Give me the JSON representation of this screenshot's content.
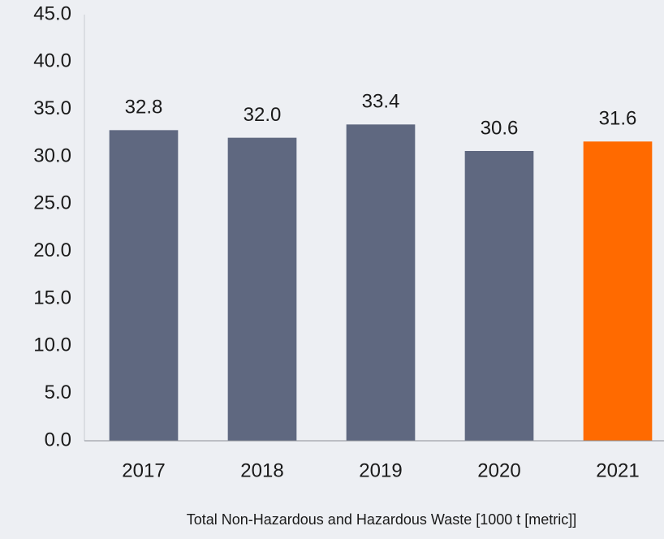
{
  "chart_data": {
    "type": "bar",
    "x_label": "Total Non-Hazardous and Hazardous Waste [1000 t [metric]]",
    "categories": [
      "2017",
      "2018",
      "2019",
      "2020",
      "2021"
    ],
    "values": [
      32.8,
      32,
      33.4,
      30.6,
      31.6
    ],
    "value_labels": [
      "32.8",
      "32.0",
      "33.4",
      "30.6",
      "31.6"
    ],
    "colors": [
      "#5f6880",
      "#5f6880",
      "#5f6880",
      "#5f6880",
      "#ff6a00"
    ],
    "ylim": [
      0,
      45
    ],
    "yticks": [
      {
        "value": 0,
        "label": "0.0"
      },
      {
        "value": 5,
        "label": "5.0"
      },
      {
        "value": 10,
        "label": "10.0"
      },
      {
        "value": 15,
        "label": "15.0"
      },
      {
        "value": 20,
        "label": "20.0"
      },
      {
        "value": 25,
        "label": "25.0"
      },
      {
        "value": 30,
        "label": "30.0"
      },
      {
        "value": 35,
        "label": "35.0"
      },
      {
        "value": 40,
        "label": "40.0"
      },
      {
        "value": 45,
        "label": "45.0"
      }
    ],
    "grid": false
  }
}
